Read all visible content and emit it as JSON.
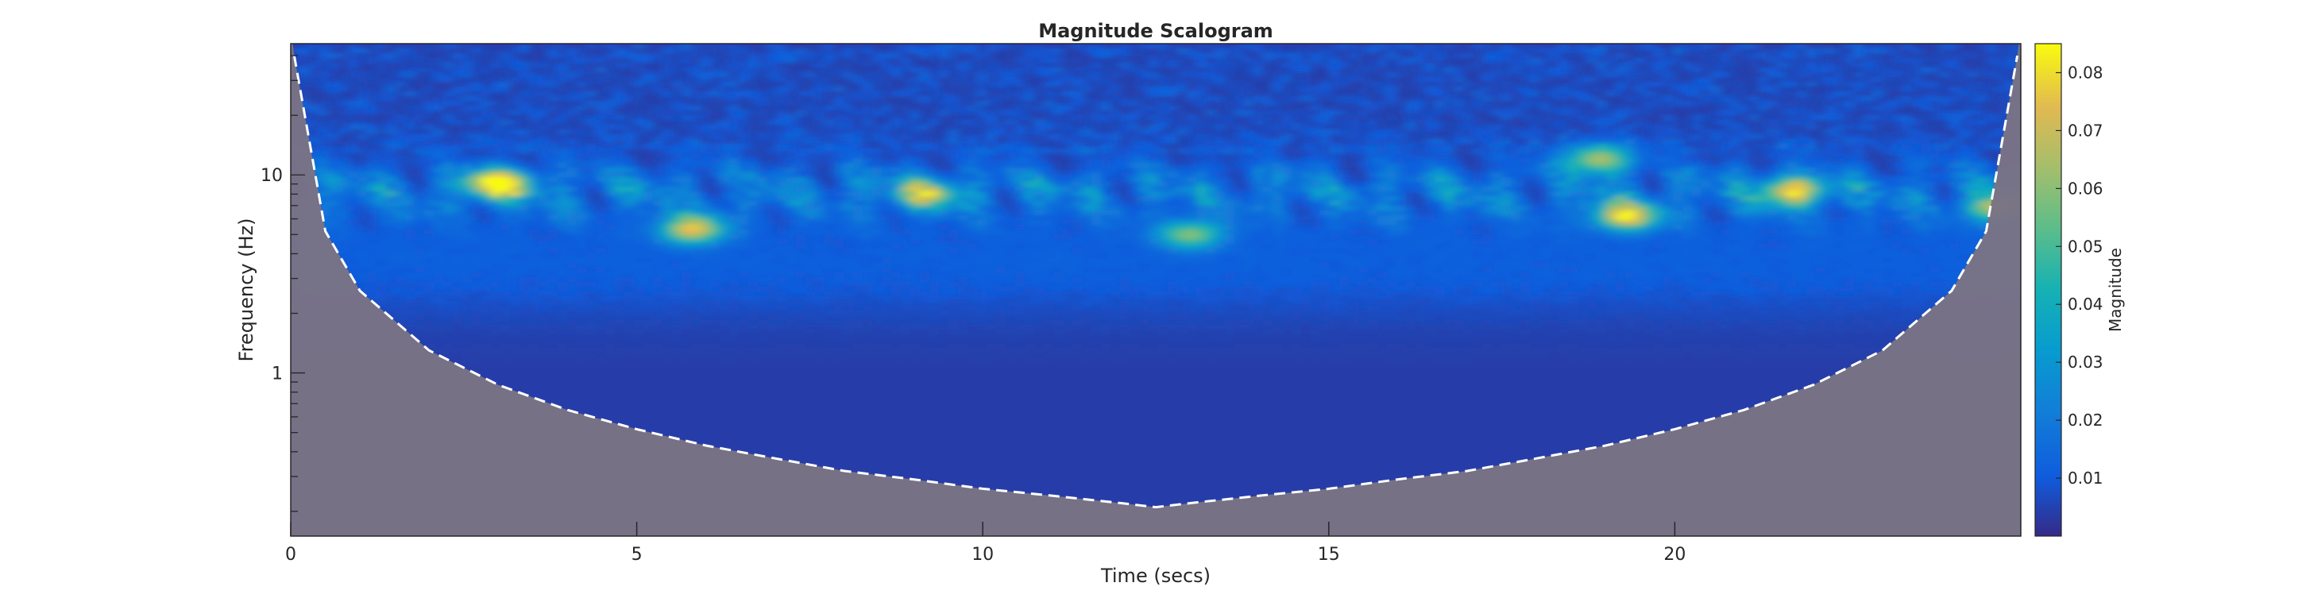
{
  "chart_data": {
    "type": "heatmap",
    "title": "Magnitude Scalogram",
    "xlabel": "Time (secs)",
    "ylabel": "Frequency (Hz)",
    "colorbar_label": "Magnitude",
    "xlim": [
      0,
      25
    ],
    "ylim_hz": [
      0.15,
      46
    ],
    "yscale": "log",
    "xticks": [
      0,
      5,
      10,
      15,
      20
    ],
    "xtick_labels": [
      "0",
      "5",
      "10",
      "15",
      "20"
    ],
    "yticks": [
      1,
      10
    ],
    "ytick_labels": [
      "1",
      "10"
    ],
    "colorbar_range": [
      0,
      0.085
    ],
    "colorbar_ticks": [
      0.01,
      0.02,
      0.03,
      0.04,
      0.05,
      0.06,
      0.07,
      0.08
    ],
    "colorbar_tick_labels": [
      "0.01",
      "0.02",
      "0.03",
      "0.04",
      "0.05",
      "0.06",
      "0.07",
      "0.08"
    ],
    "colormap": "parula",
    "cone_of_influence": {
      "style": "dashed",
      "color": "#ffffff",
      "outside_color": "#7a7385",
      "t": [
        0.05,
        0.5,
        1.0,
        2.0,
        3.0,
        4.0,
        5.0,
        6.0,
        7.0,
        8.0,
        9.0,
        10.0,
        11.0,
        12.0,
        12.5,
        13.0,
        14.0,
        15.0,
        16.0,
        17.0,
        18.0,
        19.0,
        20.0,
        21.0,
        22.0,
        23.0,
        24.0,
        24.5,
        24.95
      ],
      "f_hz": [
        40,
        5.2,
        2.6,
        1.3,
        0.87,
        0.65,
        0.52,
        0.43,
        0.37,
        0.32,
        0.29,
        0.26,
        0.24,
        0.22,
        0.21,
        0.22,
        0.24,
        0.26,
        0.29,
        0.32,
        0.37,
        0.43,
        0.52,
        0.65,
        0.87,
        1.3,
        2.6,
        5.2,
        40
      ]
    },
    "hotspots": [
      {
        "t": 3.0,
        "f_hz": 9.0,
        "magnitude": 0.08
      },
      {
        "t": 5.8,
        "f_hz": 5.3,
        "magnitude": 0.065
      },
      {
        "t": 9.2,
        "f_hz": 8.0,
        "magnitude": 0.05
      },
      {
        "t": 13.0,
        "f_hz": 5.0,
        "magnitude": 0.05
      },
      {
        "t": 18.9,
        "f_hz": 12.0,
        "magnitude": 0.06
      },
      {
        "t": 19.3,
        "f_hz": 6.2,
        "magnitude": 0.07
      },
      {
        "t": 21.7,
        "f_hz": 8.3,
        "magnitude": 0.065
      },
      {
        "t": 24.7,
        "f_hz": 6.8,
        "magnitude": 0.055
      }
    ]
  }
}
